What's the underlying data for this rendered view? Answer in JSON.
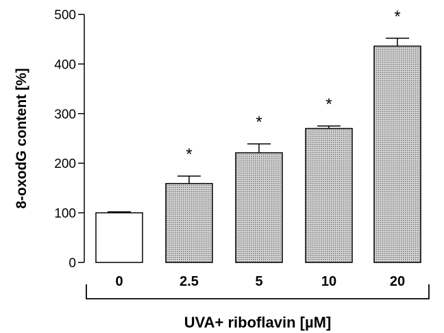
{
  "chart_data": {
    "type": "bar",
    "ylabel": "8-oxodG content [%]",
    "xlabel": "UVA+ riboflavin [µM]",
    "categories": [
      "0",
      "2.5",
      "5",
      "10",
      "20"
    ],
    "values": [
      100,
      159,
      221,
      270,
      436
    ],
    "errors": [
      2,
      15,
      18,
      5,
      16
    ],
    "significance": [
      "",
      "*",
      "*",
      "*",
      "*"
    ],
    "ylim": [
      0,
      500
    ],
    "yticks": [
      "0",
      "100",
      "200",
      "300",
      "400",
      "500"
    ],
    "grid": false,
    "legend": "none",
    "colors": {
      "control_fill": "#ffffff",
      "treated_fill": "#9a9a9a",
      "stroke": "#000000"
    }
  }
}
